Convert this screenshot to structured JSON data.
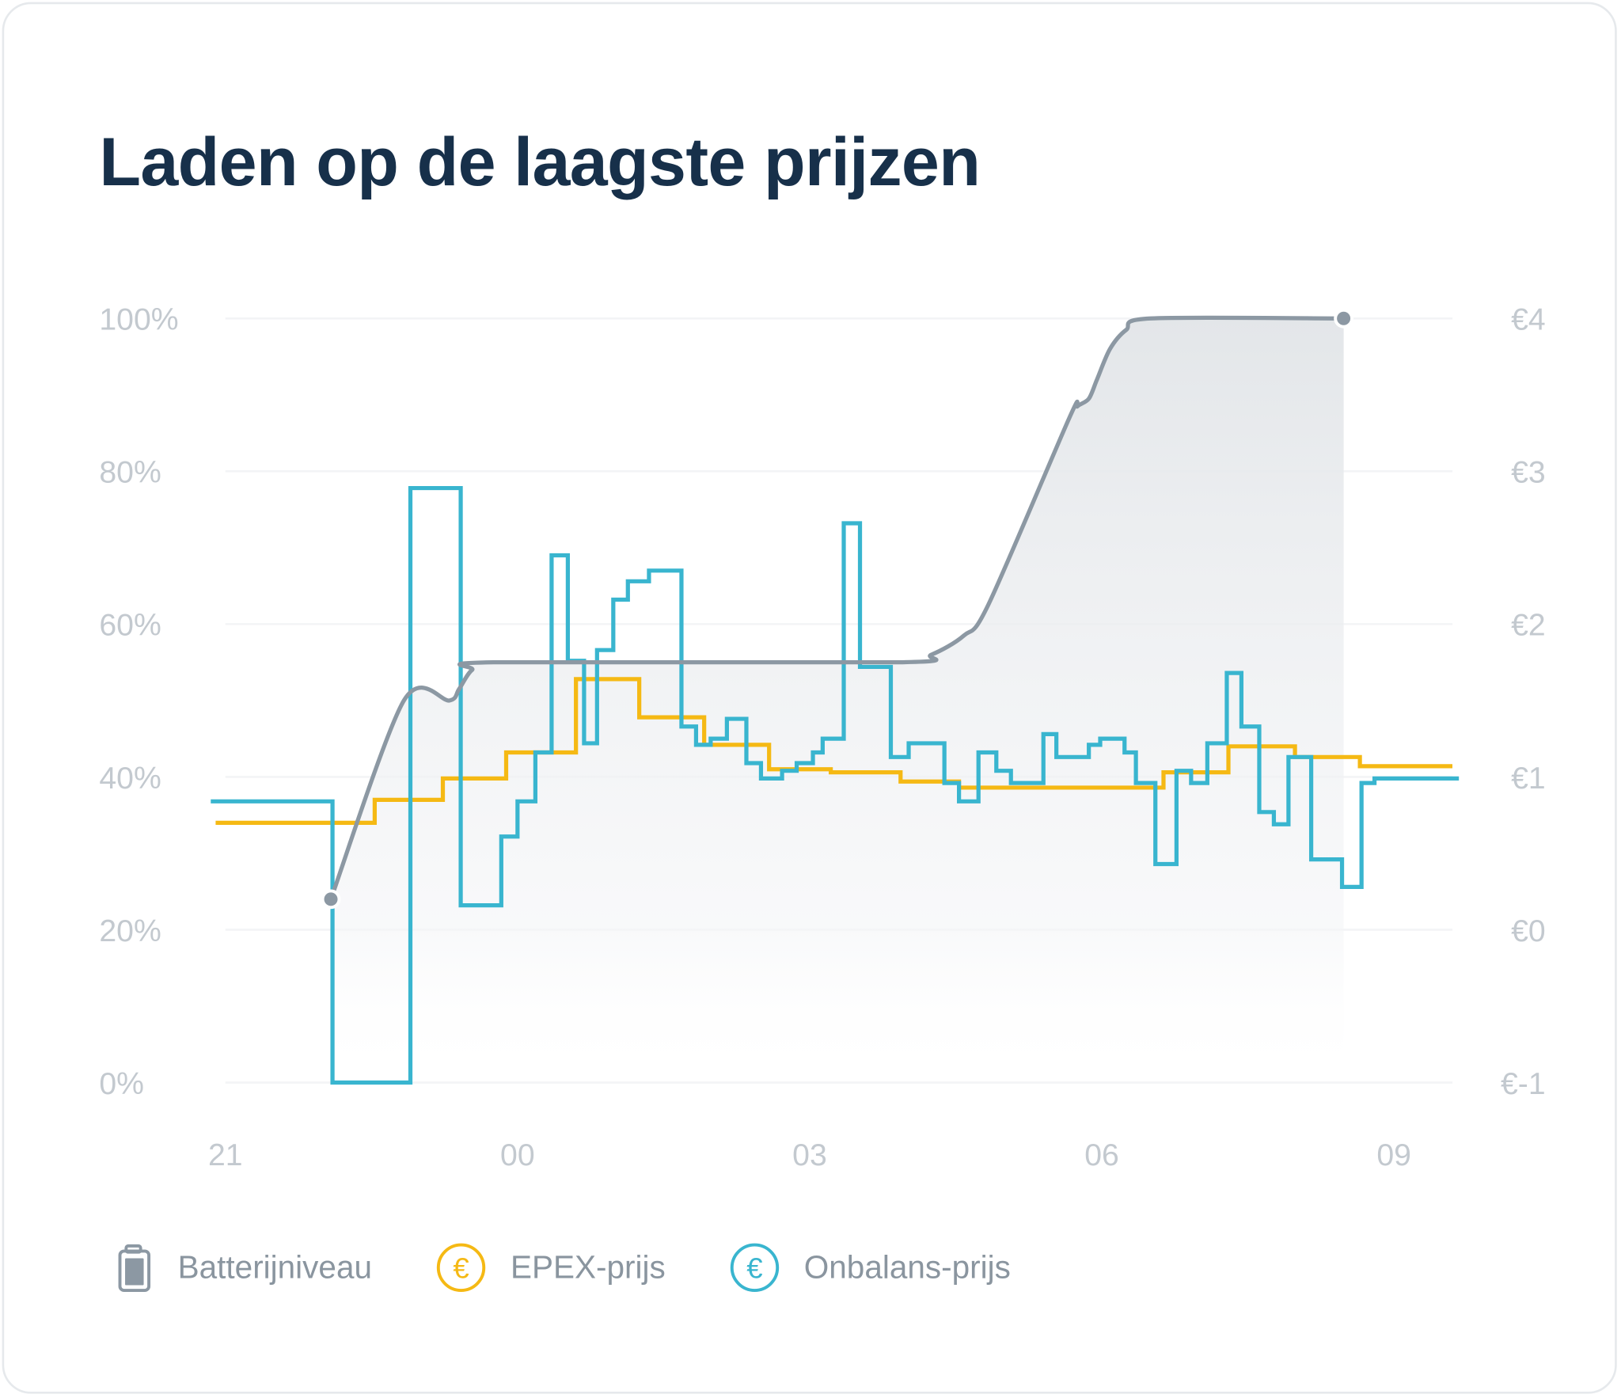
{
  "title": "Laden op de laagste prijzen",
  "colors": {
    "battery": "#8c98a3",
    "epex": "#f5b914",
    "onbalans": "#39b5cf",
    "title": "#17304a",
    "axis_text": "#c3c9cf"
  },
  "legend": [
    {
      "label": "Batterijniveau",
      "icon": "battery-icon"
    },
    {
      "label": "EPEX-prijs",
      "icon": "euro-circle-icon"
    },
    {
      "label": "Onbalans-prijs",
      "icon": "euro-circle-icon"
    }
  ],
  "chart_data": {
    "type": "line",
    "title": "Laden op de laagste prijzen",
    "grid": true,
    "legend_position": "bottom",
    "x_ticks": [
      "21",
      "00",
      "03",
      "06",
      "09"
    ],
    "y_left_ticks": [
      "100%",
      "80%",
      "60%",
      "40%",
      "20%",
      "0%"
    ],
    "y_right_ticks": [
      "€4",
      "€3",
      "€2",
      "€1",
      "€0",
      "€-1"
    ],
    "y_left_range": [
      0,
      100
    ],
    "y_right_range": [
      -1,
      4
    ],
    "series": [
      {
        "name": "Batterijniveau",
        "axis": "left",
        "style": "smooth-area",
        "points": [
          [
            "22:05",
            24
          ],
          [
            "22:50",
            50
          ],
          [
            "23:18",
            50
          ],
          [
            "23:24",
            51.5
          ],
          [
            "23:32",
            54
          ],
          [
            "23:45",
            55
          ],
          [
            "03:55",
            55
          ],
          [
            "04:15",
            56
          ],
          [
            "04:35",
            58.5
          ],
          [
            "04:50",
            62.5
          ],
          [
            "05:40",
            87
          ],
          [
            "05:45",
            88.5
          ],
          [
            "05:52",
            89.5
          ],
          [
            "05:57",
            92
          ],
          [
            "06:05",
            96
          ],
          [
            "06:15",
            98.5
          ],
          [
            "06:30",
            100
          ],
          [
            "08:29",
            100
          ]
        ]
      },
      {
        "name": "EPEX-prijs",
        "axis": "right",
        "style": "step",
        "steps": [
          [
            "20:54",
            0.7
          ],
          [
            "22:32",
            0.85
          ],
          [
            "23:14",
            0.99
          ],
          [
            "23:53",
            1.16
          ],
          [
            "00:36",
            1.64
          ],
          [
            "01:15",
            1.39
          ],
          [
            "01:55",
            1.21
          ],
          [
            "02:35",
            1.05
          ],
          [
            "03:13",
            1.03
          ],
          [
            "03:56",
            0.97
          ],
          [
            "04:32",
            0.93
          ],
          [
            "06:38",
            1.03
          ],
          [
            "07:18",
            1.2
          ],
          [
            "07:59",
            1.13
          ],
          [
            "08:39",
            1.07
          ]
        ],
        "end": "09:36"
      },
      {
        "name": "Onbalans-prijs",
        "axis": "right",
        "style": "step",
        "steps": [
          [
            "20:51",
            0.84
          ],
          [
            "22:06",
            -1.0
          ],
          [
            "22:54",
            2.89
          ],
          [
            "23:25",
            0.16
          ],
          [
            "23:50",
            0.61
          ],
          [
            "00:00",
            0.84
          ],
          [
            "00:11",
            1.16
          ],
          [
            "00:21",
            2.45
          ],
          [
            "00:31",
            1.76
          ],
          [
            "00:41",
            1.22
          ],
          [
            "00:49",
            1.83
          ],
          [
            "00:59",
            2.16
          ],
          [
            "01:08",
            2.28
          ],
          [
            "01:21",
            2.35
          ],
          [
            "01:41",
            1.33
          ],
          [
            "01:50",
            1.21
          ],
          [
            "01:59",
            1.25
          ],
          [
            "02:09",
            1.38
          ],
          [
            "02:21",
            1.09
          ],
          [
            "02:30",
            0.99
          ],
          [
            "02:43",
            1.04
          ],
          [
            "02:52",
            1.09
          ],
          [
            "03:02",
            1.16
          ],
          [
            "03:08",
            1.25
          ],
          [
            "03:21",
            2.66
          ],
          [
            "03:31",
            1.72
          ],
          [
            "03:50",
            1.13
          ],
          [
            "04:01",
            1.22
          ],
          [
            "04:23",
            0.96
          ],
          [
            "04:32",
            0.84
          ],
          [
            "04:44",
            1.16
          ],
          [
            "04:55",
            1.04
          ],
          [
            "05:04",
            0.96
          ],
          [
            "05:24",
            1.28
          ],
          [
            "05:32",
            1.13
          ],
          [
            "05:52",
            1.21
          ],
          [
            "05:59",
            1.25
          ],
          [
            "06:14",
            1.16
          ],
          [
            "06:21",
            0.96
          ],
          [
            "06:33",
            0.43
          ],
          [
            "06:46",
            1.04
          ],
          [
            "06:55",
            0.96
          ],
          [
            "07:05",
            1.22
          ],
          [
            "07:17",
            1.68
          ],
          [
            "07:26",
            1.33
          ],
          [
            "07:37",
            0.77
          ],
          [
            "07:46",
            0.69
          ],
          [
            "07:55",
            1.13
          ],
          [
            "08:09",
            0.46
          ],
          [
            "08:28",
            0.28
          ],
          [
            "08:40",
            0.96
          ],
          [
            "08:48",
            0.99
          ]
        ],
        "end": "09:40"
      }
    ]
  }
}
